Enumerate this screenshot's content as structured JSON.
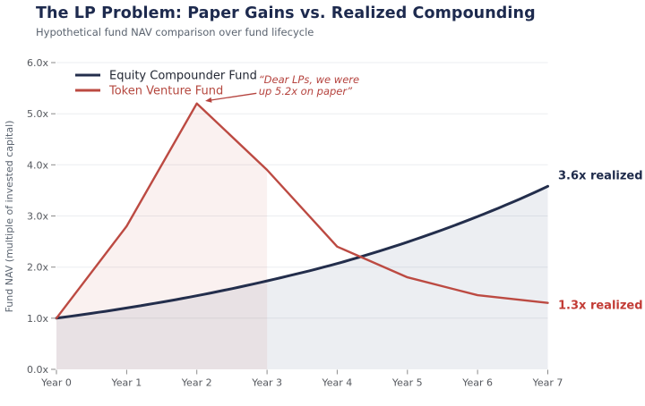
{
  "header": {
    "title": "The LP Problem: Paper Gains vs. Realized Compounding",
    "subtitle": "Hypothetical fund NAV comparison over fund lifecycle",
    "title_color": "#1d2a4e",
    "subtitle_color": "#5b6470"
  },
  "chart_data": {
    "type": "line",
    "title": "The LP Problem: Paper Gains vs. Realized Compounding",
    "subtitle": "Hypothetical fund NAV comparison over fund lifecycle",
    "xlabel": "",
    "ylabel": "Fund NAV (multiple of invested capital)",
    "x": [
      0,
      1,
      2,
      3,
      4,
      5,
      6,
      7
    ],
    "x_tick_labels": [
      "Year 0",
      "Year 1",
      "Year 2",
      "Year 3",
      "Year 4",
      "Year 5",
      "Year 6",
      "Year 7"
    ],
    "xlim": [
      0,
      7
    ],
    "ylim": [
      0,
      6
    ],
    "y_ticks": [
      0,
      1,
      2,
      3,
      4,
      5,
      6
    ],
    "y_tick_labels": [
      "0.0x",
      "1.0x",
      "2.0x",
      "3.0x",
      "4.0x",
      "5.0x",
      "6.0x"
    ],
    "grid": "horizontal",
    "grid_color": "#ebedf0",
    "tick_color": "#8a8a8a",
    "tick_label_color": "#55585e",
    "legend_position": "top-left",
    "series": [
      {
        "name": "Equity Compounder Fund",
        "color": "#232e4c",
        "legend_text_color": "#222733",
        "line_width": 3,
        "smooth_geometric": true,
        "values": [
          1.0,
          1.2,
          1.44,
          1.73,
          2.07,
          2.49,
          2.99,
          3.58
        ],
        "area_fill": "rgba(110,125,155,0.13)",
        "area_x_range": [
          0,
          7
        ]
      },
      {
        "name": "Token Venture Fund",
        "color": "#bc4a42",
        "legend_text_color": "#b5483f",
        "line_width": 2.4,
        "smooth_geometric": false,
        "values": [
          1.0,
          2.8,
          5.2,
          3.9,
          2.4,
          1.8,
          1.45,
          1.3
        ],
        "area_fill": "rgba(188,74,66,0.08)",
        "area_x_range": [
          0,
          3
        ]
      }
    ],
    "annotation": {
      "text": "“Dear LPs, we were\nup 5.2x on paper”",
      "color": "#b5433e",
      "italic": true,
      "text_data_pos": {
        "x": 2.88,
        "y": 5.6
      },
      "arrow_from": {
        "x": 2.85,
        "y": 5.4
      },
      "arrow_to": {
        "x": 2.12,
        "y": 5.25
      }
    },
    "end_labels": [
      {
        "text": "3.6x realized",
        "color": "#1e2a4a",
        "y": 3.8
      },
      {
        "text": "1.3x realized",
        "color": "#c23b35",
        "y": 1.26
      }
    ]
  }
}
